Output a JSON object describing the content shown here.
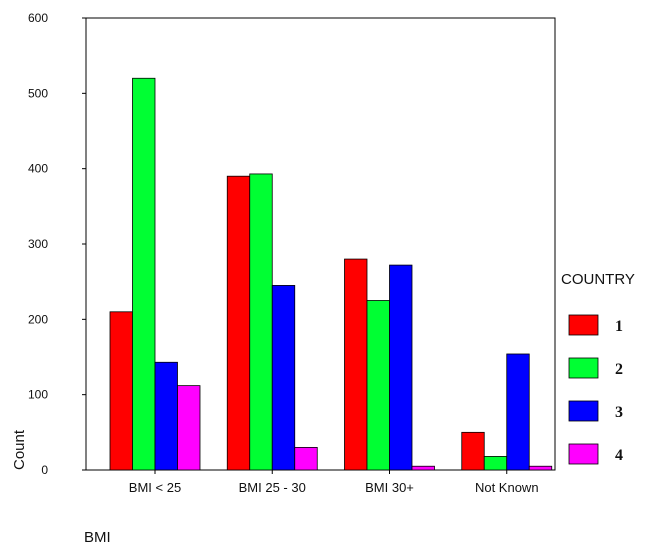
{
  "chart_data": {
    "type": "bar",
    "xlabel": "BMI",
    "ylabel": "Count",
    "categories": [
      "BMI < 25",
      "BMI 25 - 30",
      "BMI 30+",
      "Not Known"
    ],
    "series": [
      {
        "name": "1",
        "color": "#ff0000",
        "values": [
          210,
          390,
          280,
          50
        ]
      },
      {
        "name": "2",
        "color": "#00ff33",
        "values": [
          520,
          393,
          225,
          18
        ]
      },
      {
        "name": "3",
        "color": "#0000ff",
        "values": [
          143,
          245,
          272,
          154
        ]
      },
      {
        "name": "4",
        "color": "#ff00ff",
        "values": [
          112,
          30,
          5,
          5
        ]
      }
    ],
    "ylim": [
      0,
      600
    ],
    "yticks": [
      0,
      100,
      200,
      300,
      400,
      500,
      600
    ],
    "legend_title": "COUNTRY",
    "legend_position": "right",
    "grid": false
  }
}
